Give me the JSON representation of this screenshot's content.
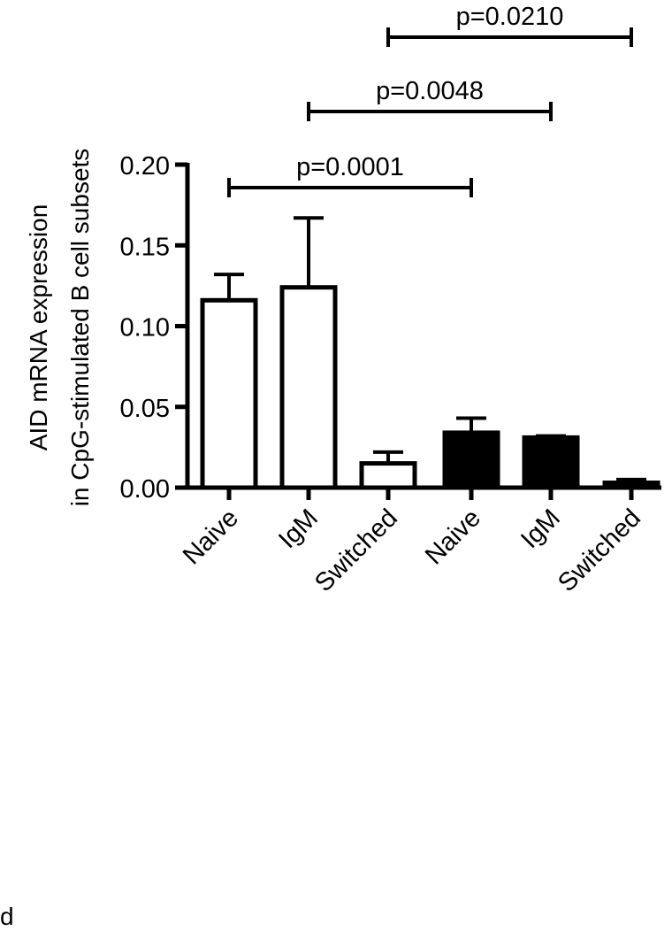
{
  "chart_data": {
    "type": "bar",
    "ylabel_lines": [
      "AID mRNA expression",
      "in CpG-stimulated B cell subsets"
    ],
    "categories": [
      "Naive",
      "IgM",
      "Switched",
      "Naive",
      "IgM",
      "Switched"
    ],
    "values": [
      0.116,
      0.124,
      0.015,
      0.034,
      0.031,
      0.003
    ],
    "errors": [
      0.016,
      0.043,
      0.007,
      0.009,
      0.001,
      0.002
    ],
    "fill": [
      "open",
      "open",
      "open",
      "filled",
      "filled",
      "filled"
    ],
    "ylim": [
      0,
      0.2
    ],
    "yticks": [
      "0.00",
      "0.05",
      "0.10",
      "0.15",
      "0.20"
    ],
    "ytick_values": [
      0,
      0.05,
      0.1,
      0.15,
      0.2
    ],
    "comparisons": [
      {
        "from": 0,
        "to": 3,
        "label": "p=0.0001"
      },
      {
        "from": 1,
        "to": 4,
        "label": "p=0.0048"
      },
      {
        "from": 2,
        "to": 5,
        "label": "p=0.0210"
      }
    ],
    "grid": false,
    "legend": "none"
  },
  "colors": {
    "ink": "#000000",
    "open_fill": "#ffffff",
    "filled_fill": "#000000"
  },
  "panel_letter": "d"
}
